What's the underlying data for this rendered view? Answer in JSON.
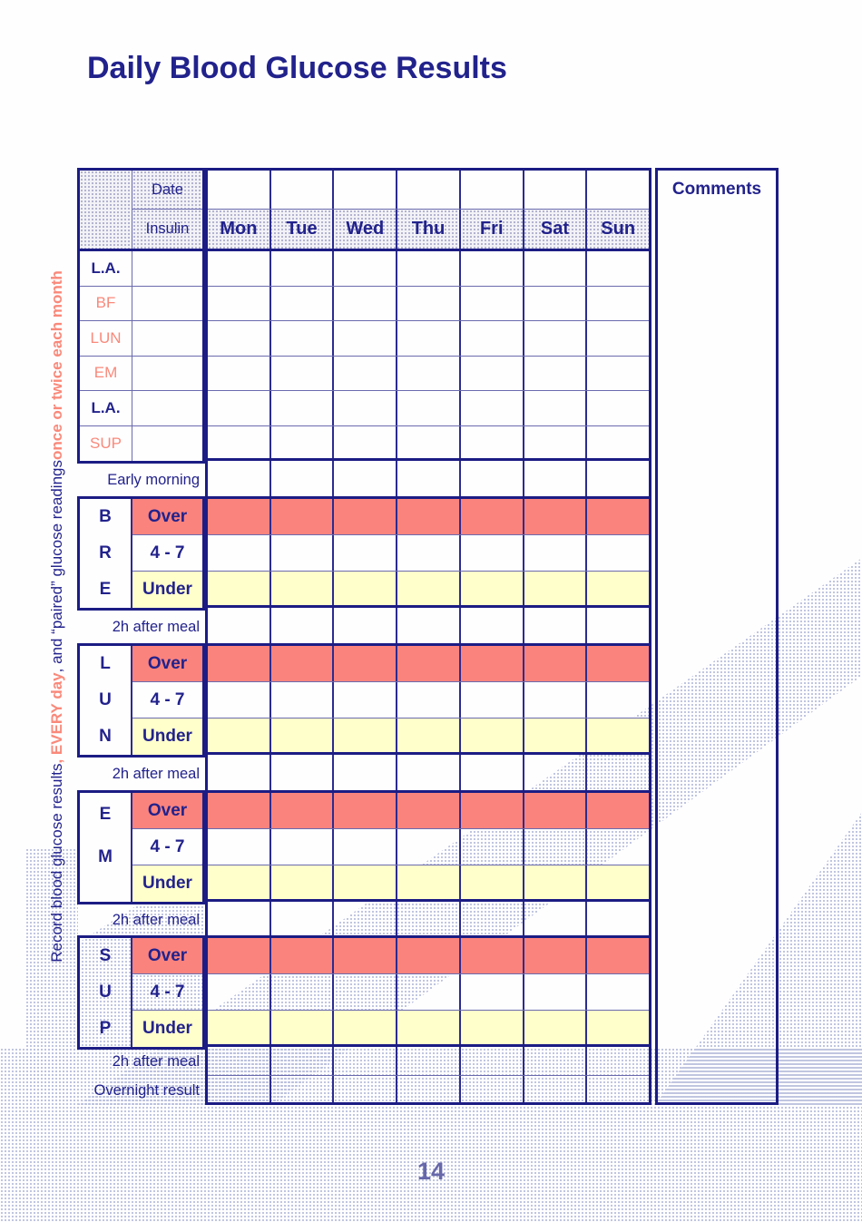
{
  "page": {
    "title": "Daily Blood Glucose Results",
    "page_number": "14",
    "side_note": {
      "part1": "Record blood glucose results ",
      "part2": ", EVERY day",
      "part3": ", and “paired” glucose readings ",
      "part4": "once or twice each month"
    }
  },
  "table": {
    "header": {
      "date_label": "Date",
      "insulin_label": "Insulin",
      "days": [
        "Mon",
        "Tue",
        "Wed",
        "Thu",
        "Fri",
        "Sat",
        "Sun"
      ],
      "comments_label": "Comments"
    },
    "insulin_rows": [
      {
        "label": "L.A."
      },
      {
        "label": "BF"
      },
      {
        "label": "LUN"
      },
      {
        "label": "EM"
      },
      {
        "label": "L.A."
      },
      {
        "label": "SUP"
      }
    ],
    "early_morning_label": "Early morning",
    "after_meal_label": "2h after meal",
    "overnight_label": "Overnight result",
    "groups": [
      {
        "letters": [
          "B",
          "R",
          "E"
        ],
        "rows": [
          {
            "label": "Over"
          },
          {
            "label": "4 - 7"
          },
          {
            "label": "Under"
          }
        ]
      },
      {
        "letters": [
          "L",
          "U",
          "N"
        ],
        "rows": [
          {
            "label": "Over"
          },
          {
            "label": "4 - 7"
          },
          {
            "label": "Under"
          }
        ]
      },
      {
        "letters": [
          "E",
          "M",
          ""
        ],
        "rows": [
          {
            "label": "Over"
          },
          {
            "label": "4 - 7"
          },
          {
            "label": "Under"
          }
        ]
      },
      {
        "letters": [
          "S",
          "U",
          "P"
        ],
        "rows": [
          {
            "label": "Over"
          },
          {
            "label": "4 - 7"
          },
          {
            "label": "Under"
          }
        ]
      }
    ],
    "colors": {
      "navy": "#1c1c84",
      "salmon_fill": "#fb837d",
      "yellow_fill": "#ffffcc",
      "salmon_text": "#f9897a"
    }
  }
}
